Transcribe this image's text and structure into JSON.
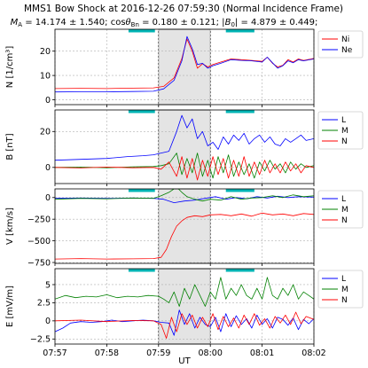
{
  "figure": {
    "title": "MMS1 Bow Shock at 2016-12-26 07:59:30 (Normal Incidence Frame)",
    "subtitle_parts": {
      "ma_label": "M",
      "ma_sub": "A",
      "ma_value": " =  14.174 ± 1.540; cos",
      "theta_label": "θ",
      "theta_sub": "Bn",
      "theta_value": " =   0.180 ± 0.121; |",
      "b0_label": "B",
      "b0_sub": "0",
      "b0_value": "| =   4.879 ± 0.449;"
    },
    "xlabel": "UT"
  },
  "chart_data": [
    {
      "type": "line",
      "panel": "density",
      "ylabel": "N [1/cm³]",
      "ylim": [
        -2,
        29
      ],
      "yticks": [
        0,
        10,
        20
      ],
      "x_time_labels": [
        "07:57",
        "07:58",
        "07:59",
        "08:00",
        "08:01",
        "08:02"
      ],
      "x_unit": "minutes after 07:57",
      "xlim": [
        0,
        5
      ],
      "shaded_interval": [
        2.0,
        3.0
      ],
      "cyan_bars": [
        [
          1.42,
          1.93
        ],
        [
          3.3,
          3.85
        ]
      ],
      "series": [
        {
          "name": "Ni",
          "color": "#ff0000",
          "x": [
            0,
            0.5,
            1.0,
            1.5,
            1.9,
            2.1,
            2.3,
            2.45,
            2.55,
            2.65,
            2.75,
            2.85,
            2.95,
            3.05,
            3.2,
            3.4,
            3.6,
            3.8,
            4.0,
            4.1,
            4.2,
            4.3,
            4.4,
            4.5,
            4.6,
            4.7,
            4.8,
            4.9,
            5.0
          ],
          "y": [
            4.6,
            4.7,
            4.6,
            4.8,
            4.9,
            5.5,
            9,
            17,
            25,
            20,
            13,
            14.8,
            13.5,
            14.5,
            15.5,
            16.8,
            16.5,
            16.2,
            15.8,
            17.5,
            15,
            13.5,
            14.2,
            16.5,
            15.5,
            16.8,
            16.2,
            16.6,
            17
          ]
        },
        {
          "name": "Ne",
          "color": "#0000ff",
          "x": [
            0,
            0.5,
            1.0,
            1.5,
            1.9,
            2.1,
            2.3,
            2.45,
            2.55,
            2.65,
            2.75,
            2.85,
            2.95,
            3.05,
            3.2,
            3.4,
            3.6,
            3.8,
            4.0,
            4.1,
            4.2,
            4.3,
            4.4,
            4.5,
            4.6,
            4.7,
            4.8,
            4.9,
            5.0
          ],
          "y": [
            3.2,
            3.3,
            3.3,
            3.4,
            3.5,
            4.5,
            8,
            16,
            26,
            21,
            14.5,
            15,
            13,
            14,
            15,
            16.5,
            16.2,
            16,
            15.5,
            17.5,
            15.2,
            13,
            14,
            16,
            15.2,
            16.5,
            16,
            16.4,
            16.8
          ]
        }
      ]
    },
    {
      "type": "line",
      "panel": "magnetic_field",
      "ylabel": "B [nT]",
      "ylim": [
        -9,
        32
      ],
      "yticks": [
        0,
        20
      ],
      "xlim": [
        0,
        5
      ],
      "shaded_interval": [
        2.0,
        3.0
      ],
      "cyan_bars": [
        [
          1.42,
          1.93
        ],
        [
          3.3,
          3.85
        ]
      ],
      "series": [
        {
          "name": "L",
          "color": "#0000ff",
          "x": [
            0,
            0.5,
            1.0,
            1.4,
            1.7,
            1.9,
            2.05,
            2.2,
            2.35,
            2.45,
            2.55,
            2.65,
            2.75,
            2.85,
            2.95,
            3.05,
            3.15,
            3.25,
            3.35,
            3.45,
            3.55,
            3.65,
            3.75,
            3.85,
            3.95,
            4.05,
            4.15,
            4.25,
            4.35,
            4.45,
            4.55,
            4.65,
            4.75,
            4.85,
            5.0
          ],
          "y": [
            4,
            4.5,
            5,
            6,
            6.5,
            7,
            8,
            9,
            20,
            29,
            22,
            27,
            16,
            20,
            12,
            14,
            10,
            17,
            13,
            18,
            15,
            19,
            13,
            16,
            18,
            14,
            17,
            13,
            12,
            16,
            14,
            16,
            18,
            15,
            16
          ]
        },
        {
          "name": "M",
          "color": "#008000",
          "x": [
            0,
            0.5,
            1.0,
            1.5,
            1.9,
            2.05,
            2.2,
            2.35,
            2.45,
            2.55,
            2.65,
            2.75,
            2.85,
            2.95,
            3.05,
            3.15,
            3.25,
            3.35,
            3.45,
            3.55,
            3.65,
            3.75,
            3.85,
            3.95,
            4.05,
            4.15,
            4.25,
            4.35,
            4.45,
            4.55,
            4.65,
            4.75,
            4.85,
            5.0
          ],
          "y": [
            0,
            0.2,
            -0.2,
            0.3,
            0.5,
            1,
            2,
            8,
            -4,
            5,
            -3,
            8,
            -5,
            4,
            -6,
            6,
            -3,
            7,
            -5,
            3,
            -4,
            2,
            -6,
            3,
            -2,
            4,
            -1,
            2,
            -3,
            3,
            -1,
            2,
            0,
            1
          ]
        },
        {
          "name": "N",
          "color": "#ff0000",
          "x": [
            0,
            0.5,
            1.0,
            1.5,
            1.9,
            2.05,
            2.2,
            2.35,
            2.45,
            2.55,
            2.65,
            2.75,
            2.85,
            2.95,
            3.05,
            3.15,
            3.25,
            3.35,
            3.45,
            3.55,
            3.65,
            3.75,
            3.85,
            3.95,
            4.05,
            4.15,
            4.25,
            4.35,
            4.45,
            4.55,
            4.65,
            4.75,
            4.85,
            5.0
          ],
          "y": [
            0,
            -0.3,
            0.2,
            -0.2,
            0,
            -1,
            3,
            -5,
            6,
            -6,
            5,
            -7,
            4,
            -5,
            6,
            -4,
            5,
            -6,
            4,
            -5,
            6,
            -5,
            3,
            -4,
            4,
            -3,
            2,
            -3,
            3,
            -2,
            2,
            -3,
            1,
            0
          ]
        }
      ]
    },
    {
      "type": "line",
      "panel": "velocity",
      "ylabel": "V [km/s]",
      "ylim": [
        -760,
        100
      ],
      "yticks": [
        0,
        -250,
        -500,
        -750
      ],
      "xlim": [
        0,
        5
      ],
      "shaded_interval": [
        2.0,
        3.0
      ],
      "cyan_bars": [
        [
          1.42,
          1.93
        ],
        [
          3.3,
          3.85
        ]
      ],
      "series": [
        {
          "name": "L",
          "color": "#0000ff",
          "x": [
            0,
            0.5,
            1.0,
            1.5,
            1.9,
            2.1,
            2.3,
            2.5,
            2.7,
            2.9,
            3.1,
            3.3,
            3.5,
            3.7,
            3.9,
            4.1,
            4.3,
            4.5,
            4.7,
            5.0
          ],
          "y": [
            -10,
            -5,
            -10,
            -5,
            -10,
            -20,
            -60,
            -40,
            -30,
            -10,
            10,
            -20,
            0,
            -15,
            10,
            -5,
            15,
            0,
            10,
            5
          ]
        },
        {
          "name": "M",
          "color": "#008000",
          "x": [
            0,
            0.5,
            1.0,
            1.5,
            1.9,
            2.05,
            2.2,
            2.35,
            2.45,
            2.55,
            2.7,
            2.85,
            3.0,
            3.2,
            3.4,
            3.6,
            3.8,
            4.0,
            4.2,
            4.4,
            4.6,
            4.8,
            5.0
          ],
          "y": [
            -20,
            -10,
            -15,
            -5,
            -10,
            20,
            60,
            120,
            60,
            10,
            -20,
            -40,
            -20,
            -30,
            10,
            -20,
            -5,
            0,
            20,
            0,
            30,
            10,
            20
          ]
        },
        {
          "name": "N",
          "color": "#ff0000",
          "x": [
            0,
            0.5,
            1.0,
            1.5,
            1.9,
            2.05,
            2.15,
            2.25,
            2.35,
            2.45,
            2.55,
            2.7,
            2.85,
            3.0,
            3.2,
            3.4,
            3.6,
            3.8,
            4.0,
            4.2,
            4.4,
            4.6,
            4.8,
            5.0
          ],
          "y": [
            -710,
            -705,
            -710,
            -708,
            -705,
            -690,
            -600,
            -450,
            -330,
            -270,
            -230,
            -210,
            -220,
            -200,
            -195,
            -210,
            -190,
            -215,
            -180,
            -200,
            -190,
            -210,
            -185,
            -195
          ]
        }
      ]
    },
    {
      "type": "line",
      "panel": "electric_field",
      "ylabel": "E [mV/m]",
      "ylim": [
        -3.2,
        7.2
      ],
      "yticks": [
        5.0,
        2.5,
        0.0,
        -2.5
      ],
      "xlim": [
        0,
        5
      ],
      "shaded_interval": [
        2.0,
        3.0
      ],
      "cyan_bars": [
        [
          1.42,
          1.93
        ],
        [
          3.3,
          3.85
        ]
      ],
      "series": [
        {
          "name": "L",
          "color": "#0000ff",
          "x": [
            0,
            0.15,
            0.3,
            0.5,
            0.7,
            0.9,
            1.1,
            1.3,
            1.5,
            1.7,
            1.9,
            2.05,
            2.2,
            2.3,
            2.4,
            2.5,
            2.6,
            2.7,
            2.8,
            2.9,
            3.0,
            3.1,
            3.2,
            3.3,
            3.4,
            3.5,
            3.6,
            3.7,
            3.8,
            3.9,
            4.0,
            4.1,
            4.2,
            4.3,
            4.4,
            4.5,
            4.6,
            4.7,
            4.8,
            4.9,
            5.0
          ],
          "y": [
            -1.5,
            -1.0,
            -0.3,
            -0.1,
            -0.2,
            -0.1,
            0.1,
            -0.1,
            0.0,
            0.1,
            0.0,
            -0.2,
            -0.3,
            -2.0,
            1.5,
            -0.5,
            1.0,
            -1.0,
            0.5,
            -0.5,
            -0.8,
            0.5,
            -1.5,
            1.0,
            -0.8,
            0.7,
            -0.5,
            0.3,
            -1.0,
            0.8,
            -0.5,
            0.3,
            -1.0,
            0.5,
            0.2,
            -0.6,
            0.4,
            -1.2,
            0.2,
            -0.4,
            0.3
          ]
        },
        {
          "name": "M",
          "color": "#008000",
          "x": [
            0,
            0.2,
            0.4,
            0.6,
            0.8,
            1.0,
            1.2,
            1.4,
            1.6,
            1.8,
            2.0,
            2.1,
            2.2,
            2.3,
            2.4,
            2.5,
            2.6,
            2.7,
            2.8,
            2.9,
            3.0,
            3.1,
            3.2,
            3.3,
            3.4,
            3.5,
            3.6,
            3.7,
            3.8,
            3.9,
            4.0,
            4.1,
            4.2,
            4.3,
            4.4,
            4.5,
            4.6,
            4.7,
            4.8,
            4.9,
            5.0
          ],
          "y": [
            3.0,
            3.5,
            3.2,
            3.4,
            3.3,
            3.6,
            3.2,
            3.4,
            3.3,
            3.5,
            3.4,
            3.0,
            2.5,
            4.0,
            2.0,
            4.5,
            3.0,
            5.0,
            3.5,
            2.0,
            4.0,
            3.0,
            6.0,
            3.0,
            4.5,
            3.5,
            5.0,
            3.5,
            3.0,
            4.5,
            3.0,
            6.0,
            3.5,
            3.0,
            4.5,
            3.5,
            5.0,
            3.0,
            4.0,
            3.5,
            3.0
          ]
        },
        {
          "name": "N",
          "color": "#ff0000",
          "x": [
            0,
            0.5,
            1.0,
            1.5,
            1.9,
            2.05,
            2.15,
            2.25,
            2.35,
            2.45,
            2.55,
            2.65,
            2.75,
            2.85,
            2.95,
            3.05,
            3.15,
            3.25,
            3.35,
            3.45,
            3.55,
            3.65,
            3.75,
            3.85,
            3.95,
            4.05,
            4.15,
            4.25,
            4.35,
            4.45,
            4.55,
            4.65,
            4.75,
            4.85,
            5.0
          ],
          "y": [
            0,
            0.1,
            -0.1,
            0.05,
            0,
            -0.5,
            -2.4,
            0.5,
            -1.5,
            1.0,
            -0.5,
            0.8,
            -1.0,
            0.5,
            -0.8,
            1.0,
            -1.2,
            0.6,
            -0.8,
            0.4,
            -1.0,
            0.8,
            -0.5,
            1.0,
            -0.6,
            0.3,
            -1.0,
            0.6,
            -0.3,
            0.8,
            -0.5,
            1.2,
            -0.4,
            0.6,
            0.2
          ]
        }
      ]
    }
  ]
}
